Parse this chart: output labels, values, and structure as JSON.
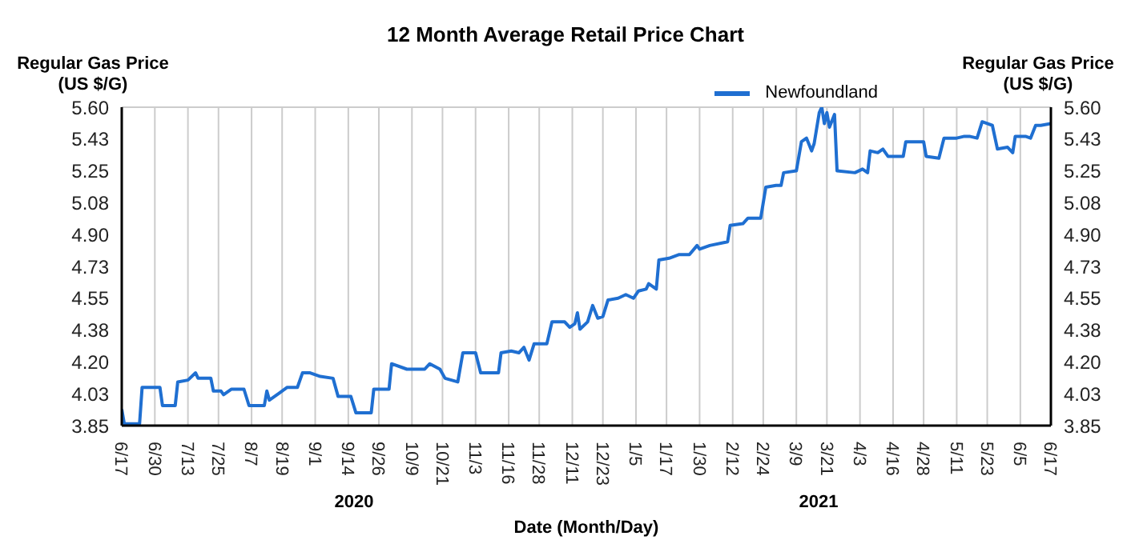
{
  "chart_data": {
    "type": "line",
    "title": "12 Month Average Retail Price Chart",
    "xlabel": "Date (Month/Day)",
    "ylabel": "Regular Gas Price (US $/G)",
    "y2label": "Regular Gas Price (US $/G)",
    "annotations": [
      "2020",
      "2021"
    ],
    "legend": "top right",
    "grid": true,
    "marker": "none",
    "line_style": "solid",
    "xlim": [
      "2020-06-17",
      "2021-06-17"
    ],
    "xticks": [
      {
        "value": "2020-06-17",
        "label": "6/17"
      },
      {
        "value": "2020-06-30",
        "label": "6/30"
      },
      {
        "value": "2020-07-13",
        "label": "7/13"
      },
      {
        "value": "2020-07-25",
        "label": "7/25"
      },
      {
        "value": "2020-08-07",
        "label": "8/7"
      },
      {
        "value": "2020-08-19",
        "label": "8/19"
      },
      {
        "value": "2020-09-01",
        "label": "9/1"
      },
      {
        "value": "2020-09-14",
        "label": "9/14"
      },
      {
        "value": "2020-09-26",
        "label": "9/26"
      },
      {
        "value": "2020-10-09",
        "label": "10/9"
      },
      {
        "value": "2020-10-21",
        "label": "10/21"
      },
      {
        "value": "2020-11-03",
        "label": "11/3"
      },
      {
        "value": "2020-11-16",
        "label": "11/16"
      },
      {
        "value": "2020-11-28",
        "label": "11/28"
      },
      {
        "value": "2020-12-11",
        "label": "12/11"
      },
      {
        "value": "2020-12-23",
        "label": "12/23"
      },
      {
        "value": "2021-01-05",
        "label": "1/5"
      },
      {
        "value": "2021-01-17",
        "label": "1/17"
      },
      {
        "value": "2021-01-30",
        "label": "1/30"
      },
      {
        "value": "2021-02-12",
        "label": "2/12"
      },
      {
        "value": "2021-02-24",
        "label": "2/24"
      },
      {
        "value": "2021-03-09",
        "label": "3/9"
      },
      {
        "value": "2021-03-21",
        "label": "3/21"
      },
      {
        "value": "2021-04-03",
        "label": "4/3"
      },
      {
        "value": "2021-04-16",
        "label": "4/16"
      },
      {
        "value": "2021-04-28",
        "label": "4/28"
      },
      {
        "value": "2021-05-11",
        "label": "5/11"
      },
      {
        "value": "2021-05-23",
        "label": "5/23"
      },
      {
        "value": "2021-06-05",
        "label": "6/5"
      },
      {
        "value": "2021-06-17",
        "label": "6/17"
      }
    ],
    "ylim": [
      3.85,
      5.6
    ],
    "yticks": [
      3.85,
      {
        "value": 4.025,
        "label": "4.03"
      },
      {
        "value": 4.2,
        "label": "4.20"
      },
      {
        "value": 4.375,
        "label": "4.38"
      },
      4.55,
      {
        "value": 4.725,
        "label": "4.73"
      },
      {
        "value": 4.9,
        "label": "4.90"
      },
      {
        "value": 5.075,
        "label": "5.08"
      },
      5.25,
      {
        "value": 5.425,
        "label": "5.43"
      },
      {
        "value": 5.6,
        "label": "5.60"
      }
    ],
    "y2lim": [
      3.85,
      5.6
    ],
    "y2ticks": [
      3.85,
      {
        "value": 4.025,
        "label": "4.03"
      },
      {
        "value": 4.2,
        "label": "4.20"
      },
      {
        "value": 4.375,
        "label": "4.38"
      },
      4.55,
      {
        "value": 4.725,
        "label": "4.73"
      },
      {
        "value": 4.9,
        "label": "4.90"
      },
      {
        "value": 5.075,
        "label": "5.08"
      },
      5.25,
      {
        "value": 5.425,
        "label": "5.43"
      },
      {
        "value": 5.6,
        "label": "5.60"
      }
    ],
    "x": [
      "2020-06-17",
      "2020-06-18",
      "2020-06-24",
      "2020-06-25",
      "2020-07-02",
      "2020-07-03",
      "2020-07-08",
      "2020-07-09",
      "2020-07-13",
      "2020-07-16",
      "2020-07-17",
      "2020-07-22",
      "2020-07-23",
      "2020-07-26",
      "2020-07-27",
      "2020-07-30",
      "2020-08-04",
      "2020-08-06",
      "2020-08-12",
      "2020-08-13",
      "2020-08-14",
      "2020-08-18",
      "2020-08-21",
      "2020-08-25",
      "2020-08-27",
      "2020-08-30",
      "2020-09-03",
      "2020-09-08",
      "2020-09-10",
      "2020-09-15",
      "2020-09-17",
      "2020-09-23",
      "2020-09-24",
      "2020-09-30",
      "2020-10-01",
      "2020-10-07",
      "2020-10-14",
      "2020-10-16",
      "2020-10-20",
      "2020-10-22",
      "2020-10-27",
      "2020-10-29",
      "2020-11-03",
      "2020-11-05",
      "2020-11-12",
      "2020-11-13",
      "2020-11-17",
      "2020-11-20",
      "2020-11-22",
      "2020-11-24",
      "2020-11-26",
      "2020-12-01",
      "2020-12-03",
      "2020-12-08",
      "2020-12-10",
      "2020-12-12",
      "2020-12-13",
      "2020-12-14",
      "2020-12-17",
      "2020-12-19",
      "2020-12-21",
      "2020-12-23",
      "2020-12-25",
      "2020-12-29",
      "2021-01-01",
      "2021-01-04",
      "2021-01-06",
      "2021-01-09",
      "2021-01-10",
      "2021-01-13",
      "2021-01-14",
      "2021-01-18",
      "2021-01-22",
      "2021-01-26",
      "2021-01-29",
      "2021-01-30",
      "2021-02-03",
      "2021-02-10",
      "2021-02-11",
      "2021-02-16",
      "2021-02-18",
      "2021-02-23",
      "2021-02-25",
      "2021-03-01",
      "2021-03-03",
      "2021-03-04",
      "2021-03-09",
      "2021-03-11",
      "2021-03-13",
      "2021-03-15",
      "2021-03-16",
      "2021-03-18",
      "2021-03-19",
      "2021-03-20",
      "2021-03-21",
      "2021-03-22",
      "2021-03-24",
      "2021-03-25",
      "2021-04-01",
      "2021-04-04",
      "2021-04-06",
      "2021-04-07",
      "2021-04-10",
      "2021-04-12",
      "2021-04-14",
      "2021-04-20",
      "2021-04-21",
      "2021-04-28",
      "2021-04-29",
      "2021-05-04",
      "2021-05-06",
      "2021-05-11",
      "2021-05-14",
      "2021-05-16",
      "2021-05-19",
      "2021-05-21",
      "2021-05-23",
      "2021-05-25",
      "2021-05-27",
      "2021-05-31",
      "2021-06-02",
      "2021-06-03",
      "2021-06-07",
      "2021-06-09",
      "2021-06-11",
      "2021-06-13",
      "2021-06-17"
    ],
    "series": [
      {
        "name": "Newfoundland",
        "color": "#1f6fd1",
        "values": [
          3.94,
          3.86,
          3.86,
          4.06,
          4.06,
          3.96,
          3.96,
          4.09,
          4.1,
          4.14,
          4.11,
          4.11,
          4.04,
          4.04,
          4.02,
          4.05,
          4.05,
          3.96,
          3.96,
          4.04,
          3.99,
          4.03,
          4.06,
          4.06,
          4.14,
          4.14,
          4.12,
          4.11,
          4.01,
          4.01,
          3.92,
          3.92,
          4.05,
          4.05,
          4.19,
          4.16,
          4.16,
          4.19,
          4.16,
          4.11,
          4.09,
          4.25,
          4.25,
          4.14,
          4.14,
          4.25,
          4.26,
          4.25,
          4.28,
          4.21,
          4.3,
          4.3,
          4.42,
          4.42,
          4.39,
          4.41,
          4.47,
          4.38,
          4.42,
          4.51,
          4.44,
          4.45,
          4.54,
          4.55,
          4.57,
          4.55,
          4.59,
          4.6,
          4.63,
          4.6,
          4.76,
          4.77,
          4.79,
          4.79,
          4.84,
          4.82,
          4.84,
          4.86,
          4.95,
          4.96,
          4.99,
          4.99,
          5.16,
          5.17,
          5.17,
          5.24,
          5.25,
          5.41,
          5.43,
          5.36,
          5.4,
          5.57,
          5.6,
          5.51,
          5.57,
          5.49,
          5.56,
          5.25,
          5.24,
          5.26,
          5.24,
          5.36,
          5.35,
          5.37,
          5.33,
          5.33,
          5.41,
          5.41,
          5.33,
          5.32,
          5.43,
          5.43,
          5.44,
          5.44,
          5.43,
          5.52,
          5.51,
          5.5,
          5.37,
          5.38,
          5.35,
          5.44,
          5.44,
          5.43,
          5.5,
          5.5,
          5.51
        ]
      }
    ]
  }
}
